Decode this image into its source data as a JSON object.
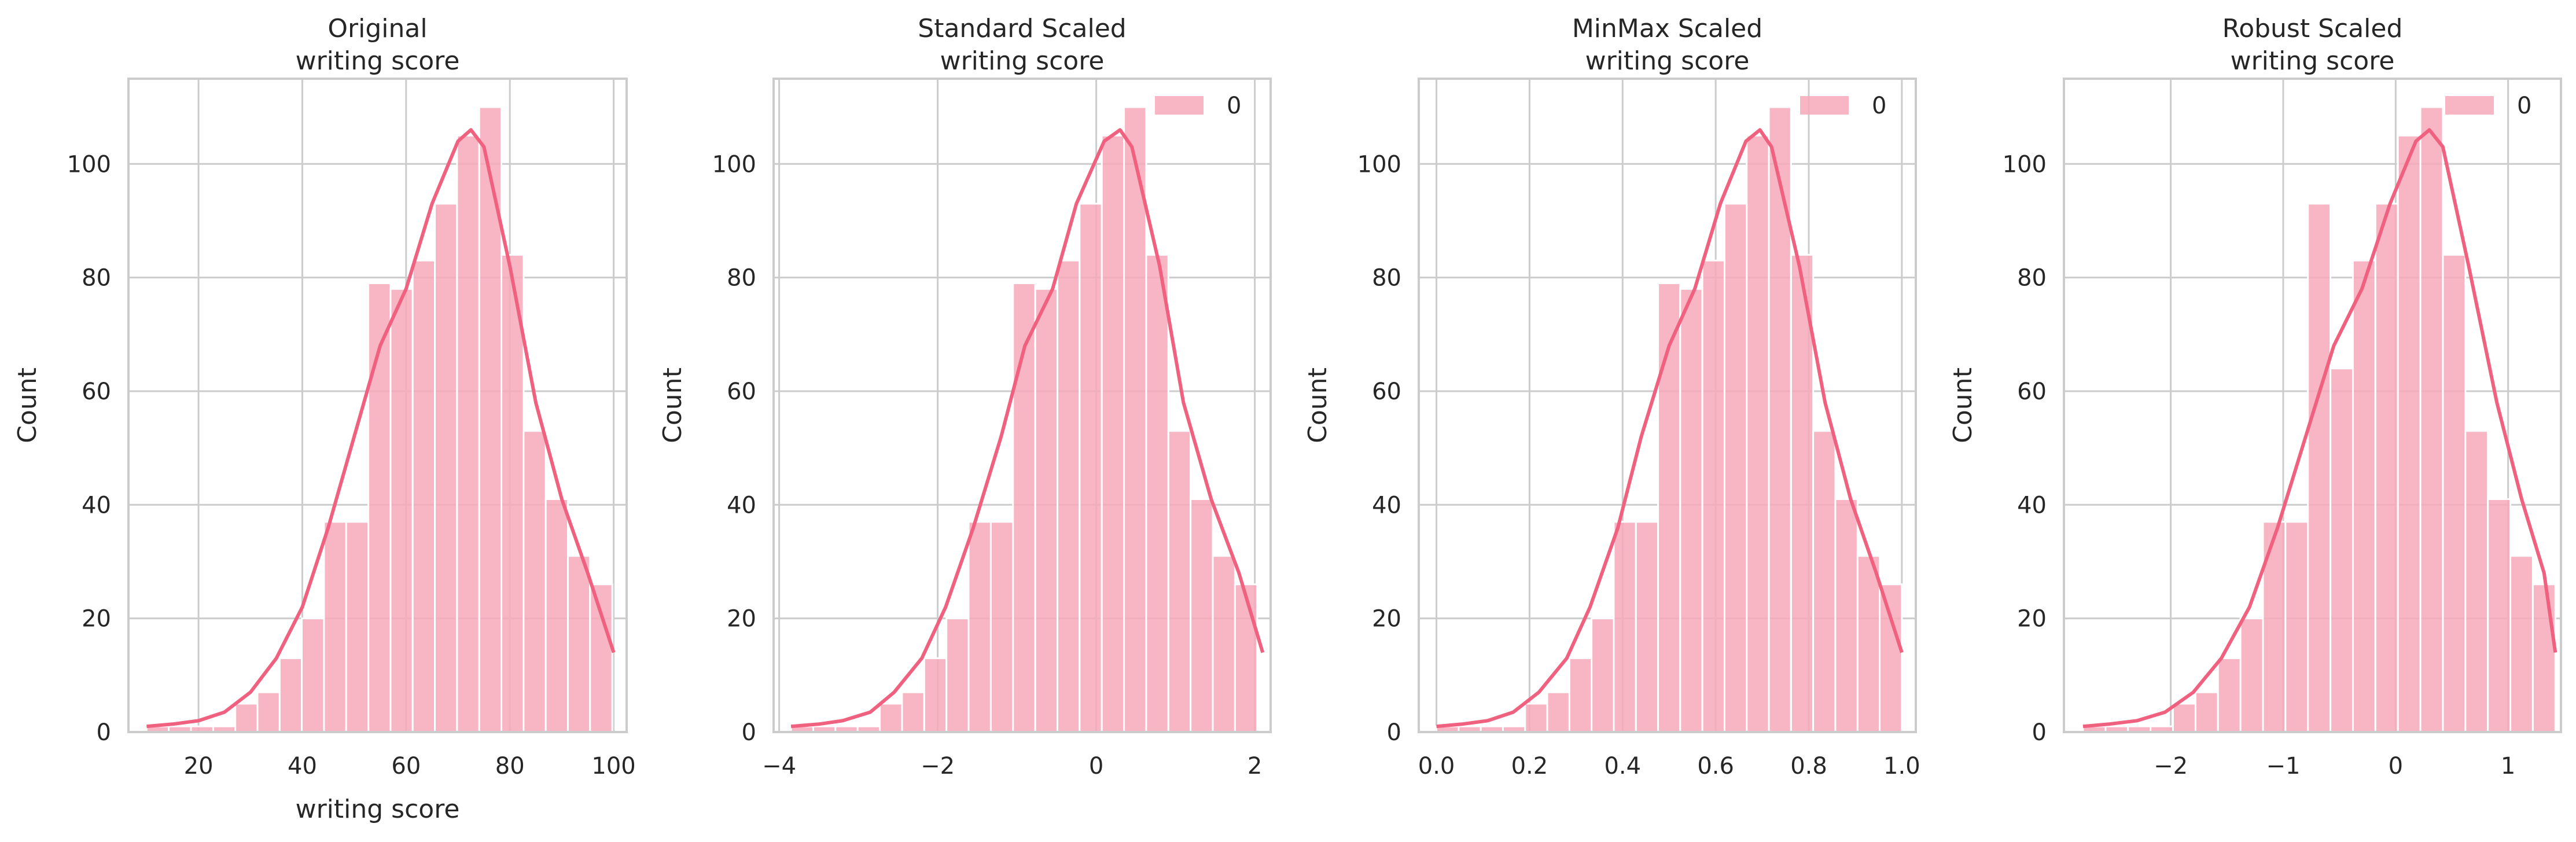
{
  "figure": {
    "bar_color": "#f7a8b8",
    "bar_edge_color": "#ffffff",
    "kde_color": "#f0607f",
    "grid_color": "#cccccc",
    "spine_color": "#cccccc"
  },
  "chart_data": [
    {
      "type": "bar",
      "title_line1": "Original",
      "title_line2": "writing score",
      "xlabel": "writing score",
      "ylabel": "Count",
      "xlim": [
        6.5,
        102.5
      ],
      "ylim": [
        0,
        115
      ],
      "xticks": [
        20,
        40,
        60,
        80,
        100
      ],
      "xtick_labels": [
        "20",
        "40",
        "60",
        "80",
        "100"
      ],
      "yticks": [
        0,
        20,
        40,
        60,
        80,
        100
      ],
      "ytick_labels": [
        "0",
        "20",
        "40",
        "60",
        "80",
        "100"
      ],
      "grid": true,
      "legend": null,
      "bins": [
        {
          "x0": 10.0,
          "x1": 14.27,
          "count": 1
        },
        {
          "x0": 14.27,
          "x1": 18.55,
          "count": 1
        },
        {
          "x0": 18.55,
          "x1": 22.82,
          "count": 1
        },
        {
          "x0": 22.82,
          "x1": 27.09,
          "count": 1
        },
        {
          "x0": 27.09,
          "x1": 31.36,
          "count": 5
        },
        {
          "x0": 31.36,
          "x1": 35.64,
          "count": 7
        },
        {
          "x0": 35.64,
          "x1": 39.91,
          "count": 13
        },
        {
          "x0": 39.91,
          "x1": 44.18,
          "count": 20
        },
        {
          "x0": 44.18,
          "x1": 48.45,
          "count": 37
        },
        {
          "x0": 48.45,
          "x1": 52.73,
          "count": 37
        },
        {
          "x0": 52.73,
          "x1": 57.0,
          "count": 79
        },
        {
          "x0": 57.0,
          "x1": 61.27,
          "count": 78
        },
        {
          "x0": 61.27,
          "x1": 65.55,
          "count": 83
        },
        {
          "x0": 65.55,
          "x1": 69.82,
          "count": 93
        },
        {
          "x0": 69.82,
          "x1": 74.09,
          "count": 105
        },
        {
          "x0": 74.09,
          "x1": 78.36,
          "count": 110
        },
        {
          "x0": 78.36,
          "x1": 82.64,
          "count": 84
        },
        {
          "x0": 82.64,
          "x1": 86.91,
          "count": 53
        },
        {
          "x0": 86.91,
          "x1": 91.18,
          "count": 41
        },
        {
          "x0": 91.18,
          "x1": 95.45,
          "count": 31
        },
        {
          "x0": 95.45,
          "x1": 99.73,
          "count": 26
        }
      ],
      "kde": [
        [
          10,
          1
        ],
        [
          15,
          1.4
        ],
        [
          20,
          2
        ],
        [
          25,
          3.5
        ],
        [
          30,
          7
        ],
        [
          35,
          13
        ],
        [
          40,
          22
        ],
        [
          45,
          36
        ],
        [
          50,
          52
        ],
        [
          55,
          68
        ],
        [
          60,
          78
        ],
        [
          65,
          93
        ],
        [
          70,
          104
        ],
        [
          72.5,
          106
        ],
        [
          75,
          103
        ],
        [
          80,
          82
        ],
        [
          85,
          58
        ],
        [
          90,
          41
        ],
        [
          95,
          28
        ],
        [
          100,
          14
        ]
      ]
    },
    {
      "type": "bar",
      "title_line1": "Standard Scaled",
      "title_line2": "writing score",
      "xlabel": "",
      "ylabel": "Count",
      "xlim": [
        -4.07,
        2.2
      ],
      "ylim": [
        0,
        115
      ],
      "xticks": [
        -4,
        -2,
        0,
        2
      ],
      "xtick_labels": [
        "−4",
        "−2",
        "0",
        "2"
      ],
      "yticks": [
        0,
        20,
        40,
        60,
        80,
        100
      ],
      "ytick_labels": [
        "0",
        "20",
        "40",
        "60",
        "80",
        "100"
      ],
      "grid": true,
      "legend": {
        "label": "0",
        "position": "upper right"
      },
      "bins": [
        {
          "x0": -3.85,
          "x1": -3.57,
          "count": 1
        },
        {
          "x0": -3.57,
          "x1": -3.29,
          "count": 1
        },
        {
          "x0": -3.29,
          "x1": -3.01,
          "count": 1
        },
        {
          "x0": -3.01,
          "x1": -2.73,
          "count": 1
        },
        {
          "x0": -2.73,
          "x1": -2.45,
          "count": 5
        },
        {
          "x0": -2.45,
          "x1": -2.17,
          "count": 7
        },
        {
          "x0": -2.17,
          "x1": -1.89,
          "count": 13
        },
        {
          "x0": -1.89,
          "x1": -1.61,
          "count": 20
        },
        {
          "x0": -1.61,
          "x1": -1.33,
          "count": 37
        },
        {
          "x0": -1.33,
          "x1": -1.05,
          "count": 37
        },
        {
          "x0": -1.05,
          "x1": -0.77,
          "count": 79
        },
        {
          "x0": -0.77,
          "x1": -0.49,
          "count": 78
        },
        {
          "x0": -0.49,
          "x1": -0.21,
          "count": 83
        },
        {
          "x0": -0.21,
          "x1": 0.07,
          "count": 93
        },
        {
          "x0": 0.07,
          "x1": 0.35,
          "count": 105
        },
        {
          "x0": 0.35,
          "x1": 0.63,
          "count": 110
        },
        {
          "x0": 0.63,
          "x1": 0.91,
          "count": 84
        },
        {
          "x0": 0.91,
          "x1": 1.19,
          "count": 53
        },
        {
          "x0": 1.19,
          "x1": 1.47,
          "count": 41
        },
        {
          "x0": 1.47,
          "x1": 1.75,
          "count": 31
        },
        {
          "x0": 1.75,
          "x1": 2.03,
          "count": 26
        }
      ],
      "kde": [
        [
          -3.85,
          1
        ],
        [
          -3.5,
          1.4
        ],
        [
          -3.2,
          2
        ],
        [
          -2.85,
          3.5
        ],
        [
          -2.55,
          7
        ],
        [
          -2.2,
          13
        ],
        [
          -1.9,
          22
        ],
        [
          -1.55,
          36
        ],
        [
          -1.2,
          52
        ],
        [
          -0.9,
          68
        ],
        [
          -0.55,
          78
        ],
        [
          -0.25,
          93
        ],
        [
          0.1,
          104
        ],
        [
          0.3,
          106
        ],
        [
          0.45,
          103
        ],
        [
          0.8,
          82
        ],
        [
          1.1,
          58
        ],
        [
          1.45,
          41
        ],
        [
          1.8,
          28
        ],
        [
          2.1,
          14
        ]
      ]
    },
    {
      "type": "bar",
      "title_line1": "MinMax Scaled",
      "title_line2": "writing score",
      "xlabel": "",
      "ylabel": "Count",
      "xlim": [
        -0.038,
        1.03
      ],
      "ylim": [
        0,
        115
      ],
      "xticks": [
        0.0,
        0.2,
        0.4,
        0.6,
        0.8,
        1.0
      ],
      "xtick_labels": [
        "0.0",
        "0.2",
        "0.4",
        "0.6",
        "0.8",
        "1.0"
      ],
      "yticks": [
        0,
        20,
        40,
        60,
        80,
        100
      ],
      "ytick_labels": [
        "0",
        "20",
        "40",
        "60",
        "80",
        "100"
      ],
      "grid": true,
      "legend": {
        "label": "0",
        "position": "upper right"
      },
      "bins": [
        {
          "x0": 0.0,
          "x1": 0.0476,
          "count": 1
        },
        {
          "x0": 0.0476,
          "x1": 0.0952,
          "count": 1
        },
        {
          "x0": 0.0952,
          "x1": 0.1429,
          "count": 1
        },
        {
          "x0": 0.1429,
          "x1": 0.1905,
          "count": 1
        },
        {
          "x0": 0.1905,
          "x1": 0.2381,
          "count": 5
        },
        {
          "x0": 0.2381,
          "x1": 0.2857,
          "count": 7
        },
        {
          "x0": 0.2857,
          "x1": 0.3333,
          "count": 13
        },
        {
          "x0": 0.3333,
          "x1": 0.381,
          "count": 20
        },
        {
          "x0": 0.381,
          "x1": 0.4286,
          "count": 37
        },
        {
          "x0": 0.4286,
          "x1": 0.4762,
          "count": 37
        },
        {
          "x0": 0.4762,
          "x1": 0.5238,
          "count": 79
        },
        {
          "x0": 0.5238,
          "x1": 0.5714,
          "count": 78
        },
        {
          "x0": 0.5714,
          "x1": 0.619,
          "count": 83
        },
        {
          "x0": 0.619,
          "x1": 0.6667,
          "count": 93
        },
        {
          "x0": 0.6667,
          "x1": 0.7143,
          "count": 105
        },
        {
          "x0": 0.7143,
          "x1": 0.7619,
          "count": 110
        },
        {
          "x0": 0.7619,
          "x1": 0.8095,
          "count": 84
        },
        {
          "x0": 0.8095,
          "x1": 0.8571,
          "count": 53
        },
        {
          "x0": 0.8571,
          "x1": 0.9048,
          "count": 41
        },
        {
          "x0": 0.9048,
          "x1": 0.9524,
          "count": 31
        },
        {
          "x0": 0.9524,
          "x1": 1.0,
          "count": 26
        }
      ],
      "kde": [
        [
          0.0,
          1
        ],
        [
          0.055,
          1.4
        ],
        [
          0.11,
          2
        ],
        [
          0.165,
          3.5
        ],
        [
          0.22,
          7
        ],
        [
          0.28,
          13
        ],
        [
          0.33,
          22
        ],
        [
          0.39,
          36
        ],
        [
          0.44,
          52
        ],
        [
          0.5,
          68
        ],
        [
          0.555,
          78
        ],
        [
          0.61,
          93
        ],
        [
          0.665,
          104
        ],
        [
          0.695,
          106
        ],
        [
          0.72,
          103
        ],
        [
          0.78,
          82
        ],
        [
          0.835,
          58
        ],
        [
          0.89,
          41
        ],
        [
          0.945,
          28
        ],
        [
          1.0,
          14
        ]
      ]
    },
    {
      "type": "bar",
      "title_line1": "Robust Scaled",
      "title_line2": "writing score",
      "xlabel": "",
      "ylabel": "Count",
      "xlim": [
        -2.95,
        1.47
      ],
      "ylim": [
        0,
        115
      ],
      "xticks": [
        -2,
        -1,
        0,
        1
      ],
      "xtick_labels": [
        "−2",
        "−1",
        "0",
        "1"
      ],
      "yticks": [
        0,
        20,
        40,
        60,
        80,
        100
      ],
      "ytick_labels": [
        "0",
        "20",
        "40",
        "60",
        "80",
        "100"
      ],
      "grid": true,
      "legend": {
        "label": "0",
        "position": "upper right"
      },
      "bins": [
        {
          "x0": -2.78,
          "x1": -2.58,
          "count": 1
        },
        {
          "x0": -2.58,
          "x1": -2.38,
          "count": 1
        },
        {
          "x0": -2.38,
          "x1": -2.18,
          "count": 1
        },
        {
          "x0": -2.18,
          "x1": -1.98,
          "count": 1
        },
        {
          "x0": -1.98,
          "x1": -1.78,
          "count": 5
        },
        {
          "x0": -1.78,
          "x1": -1.58,
          "count": 7
        },
        {
          "x0": -1.58,
          "x1": -1.38,
          "count": 13
        },
        {
          "x0": -1.38,
          "x1": -1.18,
          "count": 20
        },
        {
          "x0": -1.18,
          "x1": -0.98,
          "count": 37
        },
        {
          "x0": -0.98,
          "x1": -0.78,
          "count": 37
        },
        {
          "x0": -0.78,
          "x1": -0.58,
          "count": 93
        },
        {
          "x0": -0.58,
          "x1": -0.38,
          "count": 64
        },
        {
          "x0": -0.38,
          "x1": -0.18,
          "count": 83
        },
        {
          "x0": -0.18,
          "x1": 0.02,
          "count": 93
        },
        {
          "x0": 0.02,
          "x1": 0.22,
          "count": 105
        },
        {
          "x0": 0.22,
          "x1": 0.42,
          "count": 110
        },
        {
          "x0": 0.42,
          "x1": 0.62,
          "count": 84
        },
        {
          "x0": 0.62,
          "x1": 0.82,
          "count": 53
        },
        {
          "x0": 0.82,
          "x1": 1.02,
          "count": 41
        },
        {
          "x0": 1.02,
          "x1": 1.22,
          "count": 31
        },
        {
          "x0": 1.22,
          "x1": 1.42,
          "count": 26
        }
      ],
      "kde": [
        [
          -2.78,
          1
        ],
        [
          -2.55,
          1.4
        ],
        [
          -2.3,
          2
        ],
        [
          -2.05,
          3.5
        ],
        [
          -1.8,
          7
        ],
        [
          -1.55,
          13
        ],
        [
          -1.3,
          22
        ],
        [
          -1.05,
          36
        ],
        [
          -0.8,
          52
        ],
        [
          -0.55,
          68
        ],
        [
          -0.3,
          78
        ],
        [
          -0.05,
          93
        ],
        [
          0.18,
          104
        ],
        [
          0.3,
          106
        ],
        [
          0.42,
          103
        ],
        [
          0.65,
          82
        ],
        [
          0.9,
          58
        ],
        [
          1.12,
          41
        ],
        [
          1.32,
          28
        ],
        [
          1.42,
          14
        ]
      ]
    }
  ]
}
